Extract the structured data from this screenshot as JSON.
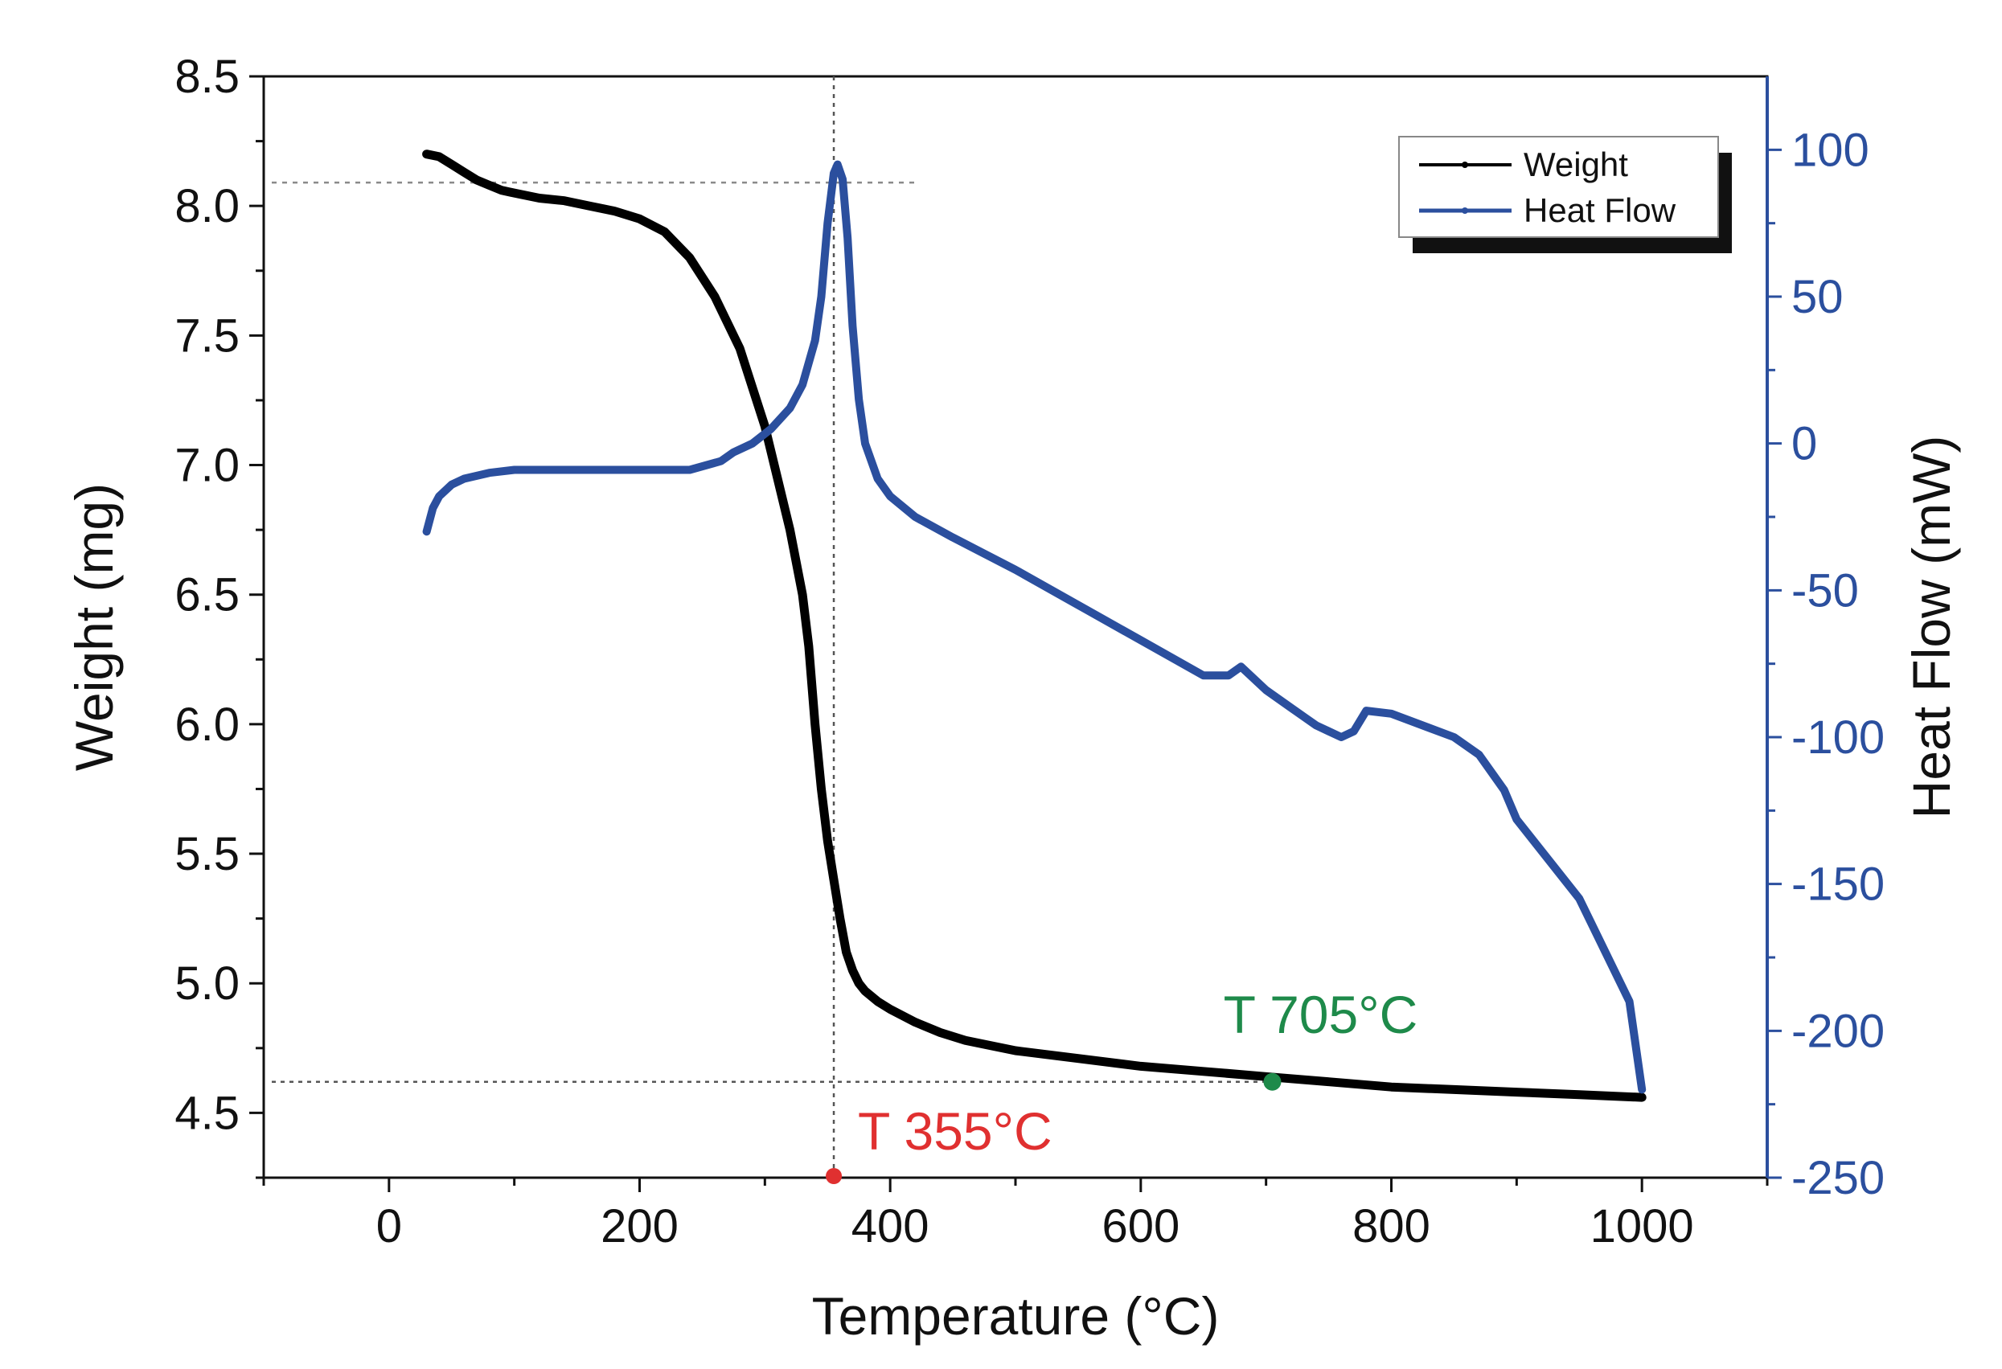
{
  "chart_data": {
    "type": "line",
    "title": "",
    "xlabel": "Temperature (°C)",
    "ylabel_left": "Weight (mg)",
    "ylabel_right": "Heat Flow (mW)",
    "xlim": [
      -100,
      1100
    ],
    "ylim_left": [
      4.25,
      8.5
    ],
    "ylim_right": [
      -250,
      125
    ],
    "x_ticks": [
      0,
      200,
      400,
      600,
      800,
      1000
    ],
    "y_left_ticks": [
      4.5,
      5.0,
      5.5,
      6.0,
      6.5,
      7.0,
      7.5,
      8.0,
      8.5
    ],
    "y_right_ticks": [
      -250,
      -200,
      -150,
      -100,
      -50,
      0,
      50,
      100
    ],
    "legend_position": "top-right",
    "series": [
      {
        "name": "Weight",
        "axis": "left",
        "color": "#000000",
        "x": [
          30,
          40,
          50,
          60,
          70,
          80,
          90,
          100,
          120,
          140,
          160,
          180,
          200,
          220,
          240,
          260,
          280,
          300,
          310,
          320,
          330,
          335,
          340,
          345,
          350,
          355,
          360,
          365,
          370,
          375,
          380,
          390,
          400,
          420,
          440,
          460,
          480,
          500,
          550,
          600,
          650,
          700,
          750,
          800,
          850,
          900,
          950,
          1000
        ],
        "y": [
          8.2,
          8.19,
          8.16,
          8.13,
          8.1,
          8.08,
          8.06,
          8.05,
          8.03,
          8.02,
          8.0,
          7.98,
          7.95,
          7.9,
          7.8,
          7.65,
          7.45,
          7.15,
          6.95,
          6.75,
          6.5,
          6.3,
          6.0,
          5.75,
          5.55,
          5.4,
          5.25,
          5.12,
          5.05,
          5.0,
          4.97,
          4.93,
          4.9,
          4.85,
          4.81,
          4.78,
          4.76,
          4.74,
          4.71,
          4.68,
          4.66,
          4.64,
          4.62,
          4.6,
          4.59,
          4.58,
          4.57,
          4.56
        ]
      },
      {
        "name": "Heat Flow",
        "axis": "right",
        "color": "#2b4f9e",
        "x": [
          30,
          35,
          40,
          50,
          60,
          70,
          80,
          100,
          150,
          200,
          240,
          265,
          275,
          290,
          305,
          320,
          330,
          340,
          345,
          350,
          355,
          358,
          362,
          366,
          370,
          375,
          380,
          390,
          400,
          420,
          450,
          500,
          550,
          600,
          650,
          670,
          680,
          700,
          720,
          740,
          760,
          770,
          780,
          800,
          850,
          870,
          890,
          900,
          950,
          990,
          1000
        ],
        "y": [
          -30,
          -22,
          -18,
          -14,
          -12,
          -11,
          -10,
          -9,
          -9,
          -9,
          -9,
          -6,
          -3,
          0,
          5,
          12,
          20,
          35,
          50,
          75,
          92,
          95,
          90,
          70,
          40,
          15,
          0,
          -12,
          -18,
          -25,
          -32,
          -43,
          -55,
          -67,
          -79,
          -79,
          -76,
          -84,
          -90,
          -96,
          -100,
          -98,
          -91,
          -92,
          -100,
          -106,
          -118,
          -128,
          -155,
          -190,
          -220
        ]
      }
    ],
    "annotations": [
      {
        "text": "T 355°C",
        "x": 355,
        "y_left": 4.25,
        "color": "#e03030"
      },
      {
        "text": "T 705°C",
        "x": 705,
        "y_left": 4.62,
        "color": "#1e8a4a"
      }
    ],
    "reference_lines": {
      "vertical_x": 355,
      "horizontal_left_y": [
        8.09,
        4.62
      ]
    }
  }
}
